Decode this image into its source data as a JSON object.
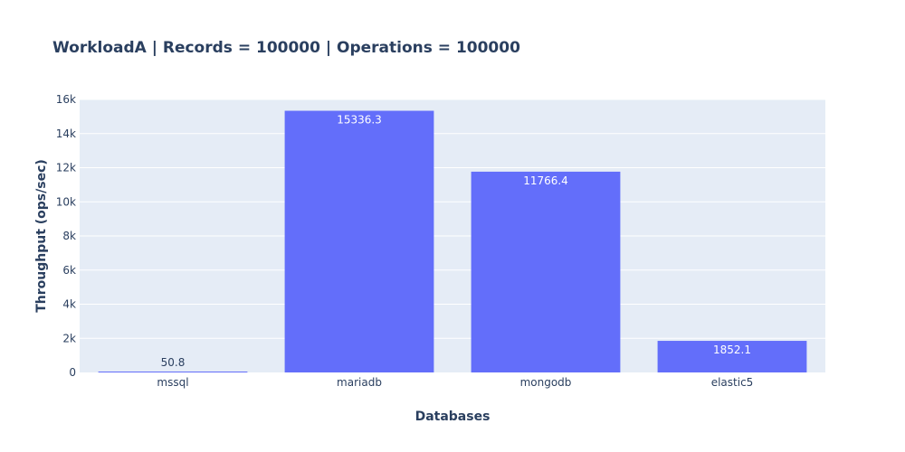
{
  "chart_data": {
    "type": "bar",
    "title": "WorkloadA | Records = 100000 | Operations = 100000",
    "xlabel": "Databases",
    "ylabel": "Throughput (ops/sec)",
    "categories": [
      "mssql",
      "mariadb",
      "mongodb",
      "elastic5"
    ],
    "values": [
      50.8,
      15336.3,
      11766.4,
      1852.1
    ],
    "value_labels": [
      "50.8",
      "15336.3",
      "11766.4",
      "1852.1"
    ],
    "ylim": [
      0,
      16000
    ],
    "yticks": [
      0,
      2000,
      4000,
      6000,
      8000,
      10000,
      12000,
      14000,
      16000
    ],
    "ytick_labels": [
      "0",
      "2k",
      "4k",
      "6k",
      "8k",
      "10k",
      "12k",
      "14k",
      "16k"
    ],
    "grid": true,
    "legend": "none",
    "colors": {
      "bar": "#636efa",
      "plot_bg": "#e5ecf6",
      "grid": "#ffffff",
      "text": "#2a3f5f"
    }
  }
}
